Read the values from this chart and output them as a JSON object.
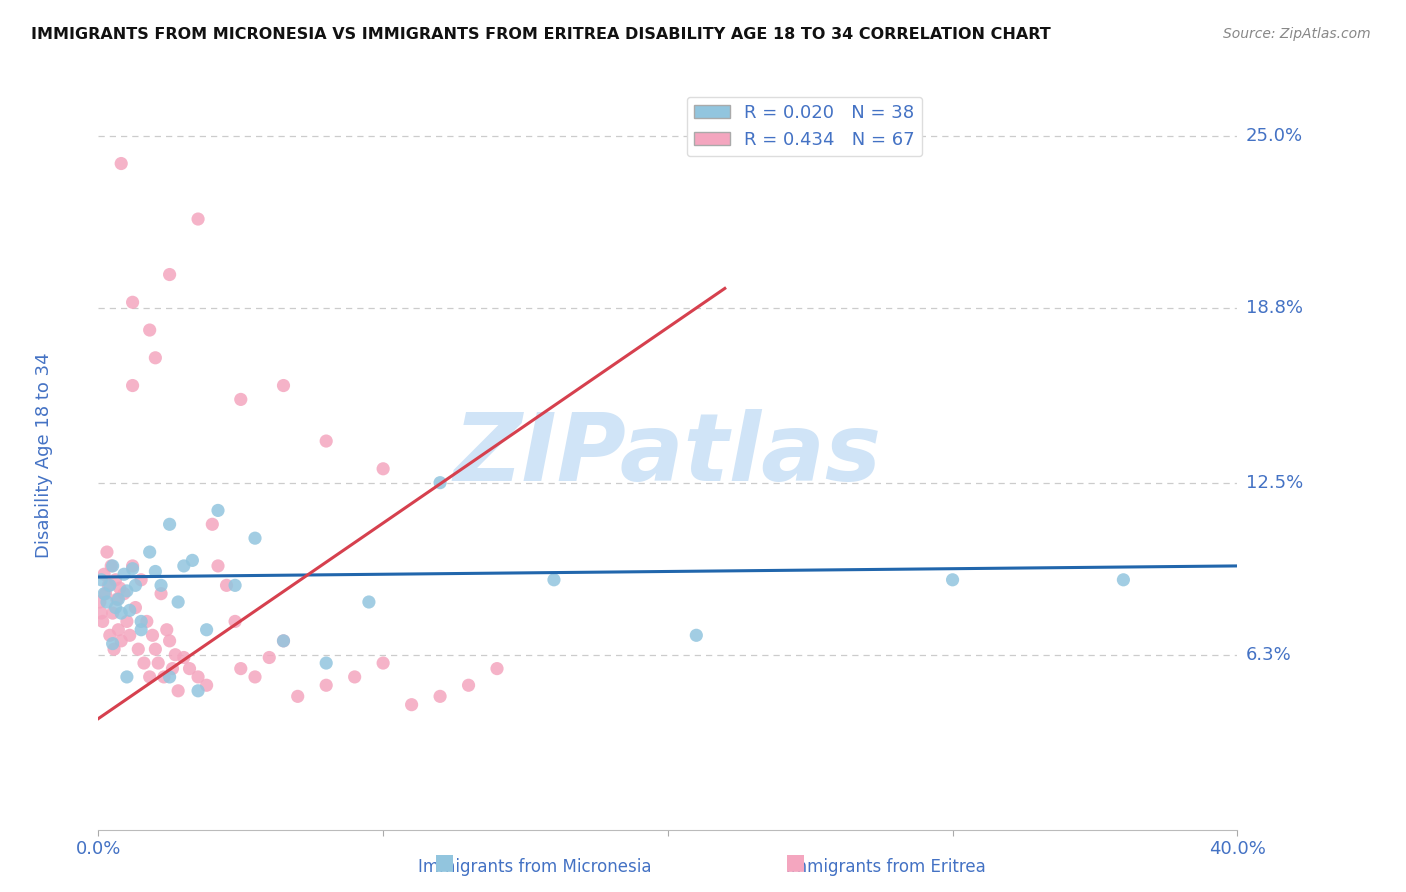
{
  "title": "IMMIGRANTS FROM MICRONESIA VS IMMIGRANTS FROM ERITREA DISABILITY AGE 18 TO 34 CORRELATION CHART",
  "source": "Source: ZipAtlas.com",
  "ylabel": "Disability Age 18 to 34",
  "xlim": [
    0.0,
    0.4
  ],
  "ylim": [
    0.0,
    0.27
  ],
  "yticks": [
    0.063,
    0.125,
    0.188,
    0.25
  ],
  "ytick_labels": [
    "6.3%",
    "12.5%",
    "18.8%",
    "25.0%"
  ],
  "micronesia_color": "#92c5de",
  "eritrea_color": "#f4a6bf",
  "micronesia_R": 0.02,
  "micronesia_N": 38,
  "eritrea_R": 0.434,
  "eritrea_N": 67,
  "trend_blue_color": "#2166ac",
  "trend_pink_color": "#d6404e",
  "watermark": "ZIPatlas",
  "watermark_color": "#d0e4f7",
  "title_color": "#111111",
  "tick_label_color": "#4472c4",
  "legend_label1": "Immigrants from Micronesia",
  "legend_label2": "Immigrants from Eritrea",
  "mic_trend_x0": 0.0,
  "mic_trend_y0": 0.091,
  "mic_trend_x1": 0.4,
  "mic_trend_y1": 0.095,
  "eri_trend_x0": 0.0,
  "eri_trend_y0": 0.04,
  "eri_trend_x1": 0.22,
  "eri_trend_y1": 0.195,
  "micronesia_x": [
    0.001,
    0.002,
    0.003,
    0.004,
    0.005,
    0.006,
    0.007,
    0.008,
    0.009,
    0.01,
    0.011,
    0.012,
    0.013,
    0.015,
    0.018,
    0.02,
    0.022,
    0.025,
    0.028,
    0.03,
    0.033,
    0.038,
    0.042,
    0.048,
    0.055,
    0.065,
    0.08,
    0.095,
    0.12,
    0.16,
    0.21,
    0.3,
    0.36,
    0.005,
    0.01,
    0.015,
    0.025,
    0.035
  ],
  "micronesia_y": [
    0.09,
    0.085,
    0.082,
    0.088,
    0.095,
    0.08,
    0.083,
    0.078,
    0.092,
    0.086,
    0.079,
    0.094,
    0.088,
    0.075,
    0.1,
    0.093,
    0.088,
    0.11,
    0.082,
    0.095,
    0.097,
    0.072,
    0.115,
    0.088,
    0.105,
    0.068,
    0.06,
    0.082,
    0.125,
    0.09,
    0.07,
    0.09,
    0.09,
    0.067,
    0.055,
    0.072,
    0.055,
    0.05
  ],
  "eritrea_x": [
    0.0005,
    0.001,
    0.0015,
    0.002,
    0.0025,
    0.003,
    0.0035,
    0.004,
    0.0045,
    0.005,
    0.0055,
    0.006,
    0.0065,
    0.007,
    0.0075,
    0.008,
    0.009,
    0.01,
    0.011,
    0.012,
    0.013,
    0.014,
    0.015,
    0.016,
    0.017,
    0.018,
    0.019,
    0.02,
    0.021,
    0.022,
    0.023,
    0.024,
    0.025,
    0.026,
    0.027,
    0.028,
    0.03,
    0.032,
    0.035,
    0.038,
    0.04,
    0.042,
    0.045,
    0.048,
    0.05,
    0.055,
    0.06,
    0.065,
    0.07,
    0.08,
    0.09,
    0.1,
    0.11,
    0.12,
    0.13,
    0.14,
    0.05,
    0.065,
    0.08,
    0.1,
    0.012,
    0.018,
    0.025,
    0.035,
    0.008,
    0.012,
    0.02
  ],
  "eritrea_y": [
    0.082,
    0.078,
    0.075,
    0.092,
    0.085,
    0.1,
    0.088,
    0.07,
    0.095,
    0.078,
    0.065,
    0.09,
    0.083,
    0.072,
    0.087,
    0.068,
    0.085,
    0.075,
    0.07,
    0.095,
    0.08,
    0.065,
    0.09,
    0.06,
    0.075,
    0.055,
    0.07,
    0.065,
    0.06,
    0.085,
    0.055,
    0.072,
    0.068,
    0.058,
    0.063,
    0.05,
    0.062,
    0.058,
    0.055,
    0.052,
    0.11,
    0.095,
    0.088,
    0.075,
    0.058,
    0.055,
    0.062,
    0.068,
    0.048,
    0.052,
    0.055,
    0.06,
    0.045,
    0.048,
    0.052,
    0.058,
    0.155,
    0.16,
    0.14,
    0.13,
    0.19,
    0.18,
    0.2,
    0.22,
    0.24,
    0.16,
    0.17
  ]
}
